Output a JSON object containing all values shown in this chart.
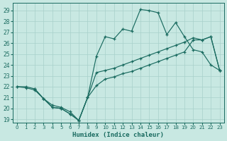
{
  "xlabel": "Humidex (Indice chaleur)",
  "xlim": [
    -0.5,
    23.5
  ],
  "ylim": [
    18.7,
    29.7
  ],
  "xticks": [
    0,
    1,
    2,
    3,
    4,
    5,
    6,
    7,
    8,
    9,
    10,
    11,
    12,
    13,
    14,
    15,
    16,
    17,
    18,
    19,
    20,
    21,
    22,
    23
  ],
  "yticks": [
    19,
    20,
    21,
    22,
    23,
    24,
    25,
    26,
    27,
    28,
    29
  ],
  "bg_color": "#c8e8e2",
  "grid_color": "#a8d0ca",
  "line_color": "#1a6b60",
  "line1_x": [
    0,
    1,
    2,
    3,
    4,
    5,
    6,
    7,
    8,
    9,
    10,
    11,
    12,
    13,
    14,
    15,
    16,
    17,
    18,
    19,
    20,
    21,
    22,
    23
  ],
  "line1_y": [
    22.0,
    22.0,
    21.8,
    20.9,
    20.1,
    20.0,
    19.5,
    18.9,
    21.0,
    23.3,
    23.5,
    23.7,
    24.0,
    24.3,
    24.6,
    24.9,
    25.2,
    25.5,
    25.8,
    26.1,
    26.5,
    26.3,
    26.6,
    23.5
  ],
  "line2_x": [
    0,
    1,
    2,
    3,
    4,
    5,
    6,
    7,
    8,
    9,
    10,
    11,
    12,
    13,
    14,
    15,
    16,
    17,
    18,
    19,
    20,
    21,
    22,
    23
  ],
  "line2_y": [
    22.0,
    21.9,
    21.7,
    20.9,
    20.1,
    20.0,
    19.5,
    18.9,
    21.0,
    24.8,
    26.6,
    26.4,
    27.3,
    27.1,
    29.1,
    29.0,
    28.8,
    26.8,
    27.9,
    26.6,
    25.4,
    25.2,
    24.0,
    23.5
  ],
  "line3_x": [
    2,
    3,
    4,
    5,
    6,
    7,
    8,
    9,
    10,
    11,
    12,
    13,
    14,
    15,
    16,
    17,
    18,
    19,
    20,
    21,
    22,
    23
  ],
  "line3_y": [
    21.8,
    20.9,
    20.3,
    20.1,
    19.7,
    18.9,
    21.0,
    22.1,
    22.7,
    22.9,
    23.2,
    23.4,
    23.7,
    24.0,
    24.3,
    24.6,
    24.9,
    25.2,
    26.3,
    26.3,
    26.6,
    23.5
  ]
}
